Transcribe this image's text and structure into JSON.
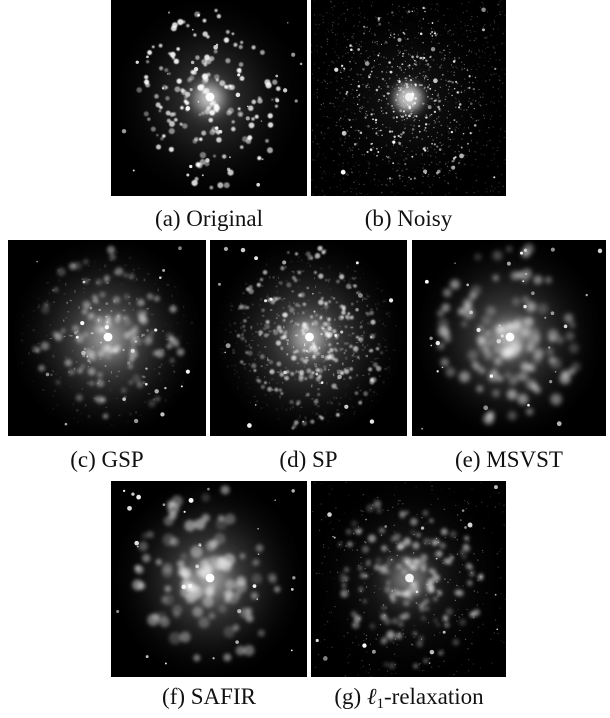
{
  "figure": {
    "panels": [
      {
        "id": "a",
        "caption": "(a) Original",
        "variant": "original"
      },
      {
        "id": "b",
        "caption": "(b) Noisy",
        "variant": "noisy"
      },
      {
        "id": "c",
        "caption": "(c) GSP",
        "variant": "gsp"
      },
      {
        "id": "d",
        "caption": "(d) SP",
        "variant": "sp"
      },
      {
        "id": "e",
        "caption": "(e) MSVST",
        "variant": "msvst"
      },
      {
        "id": "f",
        "caption": "(f) SAFIR",
        "variant": "safir"
      },
      {
        "id": "g",
        "caption_prefix": "(g) ",
        "caption_symbol": "ℓ",
        "caption_subscript": "1",
        "caption_suffix": "-relaxation",
        "variant": "l1"
      }
    ]
  }
}
